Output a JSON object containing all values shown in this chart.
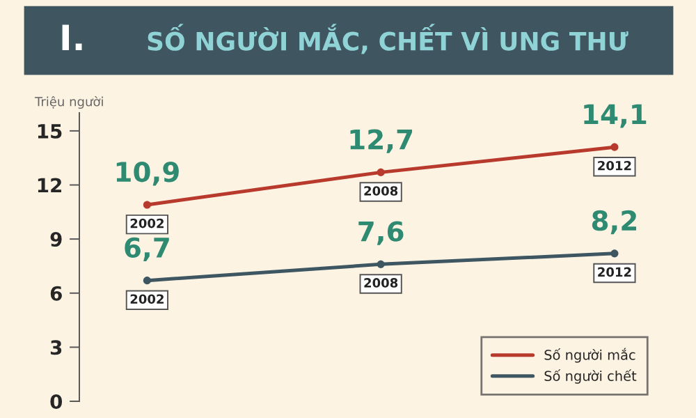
{
  "chart_data": {
    "type": "line",
    "title": "SỐ NGƯỜI MẮC, CHẾT VÌ UNG THƯ",
    "annotations": [
      "I."
    ],
    "ylabel": "Triệu người",
    "categories": [
      "2002",
      "2008",
      "2012"
    ],
    "series": [
      {
        "name": "Số người mắc",
        "color": "#b83a2c",
        "values": [
          10.9,
          12.7,
          14.1
        ],
        "value_labels": [
          "10,9",
          "12,7",
          "14,1"
        ]
      },
      {
        "name": "Số người chết",
        "color": "#3e5661",
        "values": [
          6.7,
          7.6,
          8.2
        ],
        "value_labels": [
          "6,7",
          "7,6",
          "8,2"
        ]
      }
    ],
    "ylim": [
      0,
      16
    ],
    "yticks": [
      0,
      3,
      6,
      9,
      12,
      15
    ],
    "tick_labels": "y",
    "grid": false,
    "legend": "bottom right",
    "marker": "circle",
    "line_style": "solid"
  }
}
